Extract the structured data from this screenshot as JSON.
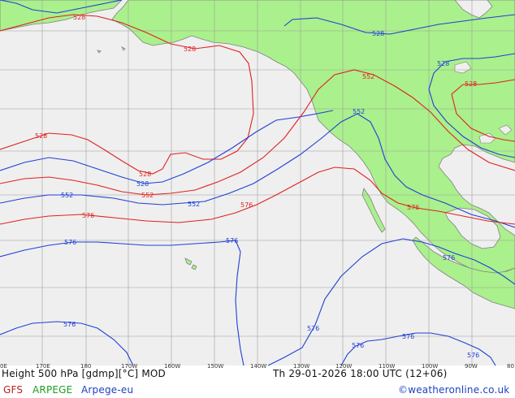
{
  "colors": {
    "ocean": "#efefef",
    "land": "#aaf08c",
    "grid": "#9e9e9e",
    "coast": "#808080",
    "contour_blue": "#1f3fd6",
    "contour_red": "#e02020",
    "gfs": "#c02020",
    "arpege": "#20a020",
    "arpege_eu": "#2040c0"
  },
  "lon_ticks": [
    "0E",
    "170E",
    "180",
    "170W",
    "160W",
    "150W",
    "140W",
    "130W",
    "120W",
    "110W",
    "100W",
    "90W",
    "80"
  ],
  "contour_labels": {
    "l528": "528",
    "l552": "552",
    "l576": "576"
  },
  "footer": {
    "title": "Height 500 hPa [gdmp][°C] MOD",
    "datetime": "Th 29-01-2026 18:00 UTC (12+06)",
    "model_gfs": "GFS",
    "model_arpege": "ARPEGE",
    "model_arpege_eu": "Arpege-eu",
    "credit": "©weatheronline.co.uk"
  }
}
